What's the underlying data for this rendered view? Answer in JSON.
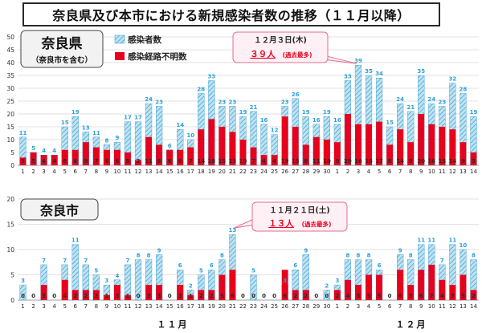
{
  "title": "奈良県及び本市における新規感染者数の推移（１１月以降）",
  "chart_data": [
    {
      "type": "bar",
      "panel_label": "奈良県",
      "panel_sublabel": "（奈良市を含む）",
      "ylim": [
        0,
        50
      ],
      "yticks": [
        0,
        5,
        10,
        15,
        20,
        25,
        30,
        35,
        40,
        45,
        50
      ],
      "grid": true,
      "x_labels": [
        "1",
        "2",
        "3",
        "4",
        "5",
        "6",
        "7",
        "8",
        "9",
        "10",
        "11",
        "12",
        "13",
        "14",
        "15",
        "16",
        "17",
        "18",
        "19",
        "20",
        "21",
        "22",
        "23",
        "24",
        "25",
        "26",
        "27",
        "28",
        "29",
        "30",
        "1",
        "2",
        "3",
        "4",
        "5",
        "6",
        "7",
        "8",
        "9",
        "10",
        "11",
        "12",
        "13",
        "14"
      ],
      "series": [
        {
          "name": "感染者数",
          "values": [
            11,
            5,
            4,
            4,
            15,
            19,
            13,
            11,
            8,
            9,
            17,
            17,
            24,
            23,
            6,
            14,
            10,
            28,
            33,
            23,
            23,
            19,
            21,
            16,
            12,
            23,
            26,
            19,
            16,
            19,
            16,
            33,
            39,
            35,
            34,
            15,
            24,
            21,
            35,
            24,
            23,
            32,
            28,
            19
          ]
        },
        {
          "name": "感染経路不明数",
          "values": [
            3,
            5,
            4,
            4,
            6,
            6,
            9,
            7,
            6,
            6,
            5,
            2,
            11,
            8,
            6,
            6,
            7,
            14,
            18,
            15,
            13,
            10,
            7,
            4,
            4,
            19,
            15,
            8,
            11,
            10,
            9,
            20,
            16,
            16,
            17,
            8,
            14,
            9,
            20,
            16,
            15,
            14,
            9,
            5
          ]
        }
      ],
      "annotation": {
        "lines": [
          "１２月３日(木)",
          "３９人",
          "(過去最多)"
        ]
      }
    },
    {
      "type": "bar",
      "panel_label": "奈良市",
      "ylim": [
        0,
        20
      ],
      "yticks": [
        0,
        5,
        10,
        15,
        20
      ],
      "grid": true,
      "x_labels": [
        "1",
        "2",
        "3",
        "4",
        "5",
        "6",
        "7",
        "8",
        "9",
        "10",
        "11",
        "12",
        "13",
        "14",
        "15",
        "16",
        "17",
        "18",
        "19",
        "20",
        "21",
        "22",
        "23",
        "24",
        "25",
        "26",
        "27",
        "28",
        "29",
        "30",
        "1",
        "2",
        "3",
        "4",
        "5",
        "6",
        "7",
        "8",
        "9",
        "10",
        "11",
        "12",
        "13",
        "14"
      ],
      "series": [
        {
          "name": "感染者数",
          "values": [
            3,
            0,
            7,
            0,
            7,
            11,
            7,
            5,
            3,
            4,
            7,
            8,
            8,
            9,
            0,
            6,
            2,
            5,
            6,
            8,
            13,
            0,
            5,
            0,
            0,
            3,
            6,
            9,
            0,
            2,
            3,
            8,
            8,
            8,
            6,
            0,
            9,
            8,
            11,
            11,
            7,
            11,
            10,
            8
          ]
        },
        {
          "name": "感染経路不明数",
          "values": [
            0,
            0,
            3,
            0,
            4,
            2,
            2,
            2,
            1,
            3,
            1,
            0,
            3,
            3,
            0,
            3,
            1,
            2,
            2,
            5,
            6,
            0,
            0,
            0,
            0,
            6,
            2,
            2,
            0,
            0,
            2,
            4,
            3,
            5,
            5,
            0,
            6,
            3,
            6,
            7,
            4,
            3,
            5,
            2
          ]
        }
      ],
      "annotation": {
        "lines": [
          "１１月２１日(土)",
          "１３人",
          "(過去最多)"
        ]
      }
    }
  ],
  "month_labels": {
    "m11": "１１月",
    "m12": "１２月"
  },
  "colors": {
    "total_fill": "#bfe3f2",
    "total_hatch": "#3a9ad0",
    "total_label": "#2aa0d8",
    "unknown_fill": "#e8001c",
    "unknown_label": "#2a2a2a",
    "grid": "#d9d9d9",
    "panel_box": "#f2f2f2",
    "callout_fill": "#fff0f5",
    "callout_border": "#e0708c",
    "callout_text": "#222222",
    "callout_accent": "#e8001c"
  }
}
